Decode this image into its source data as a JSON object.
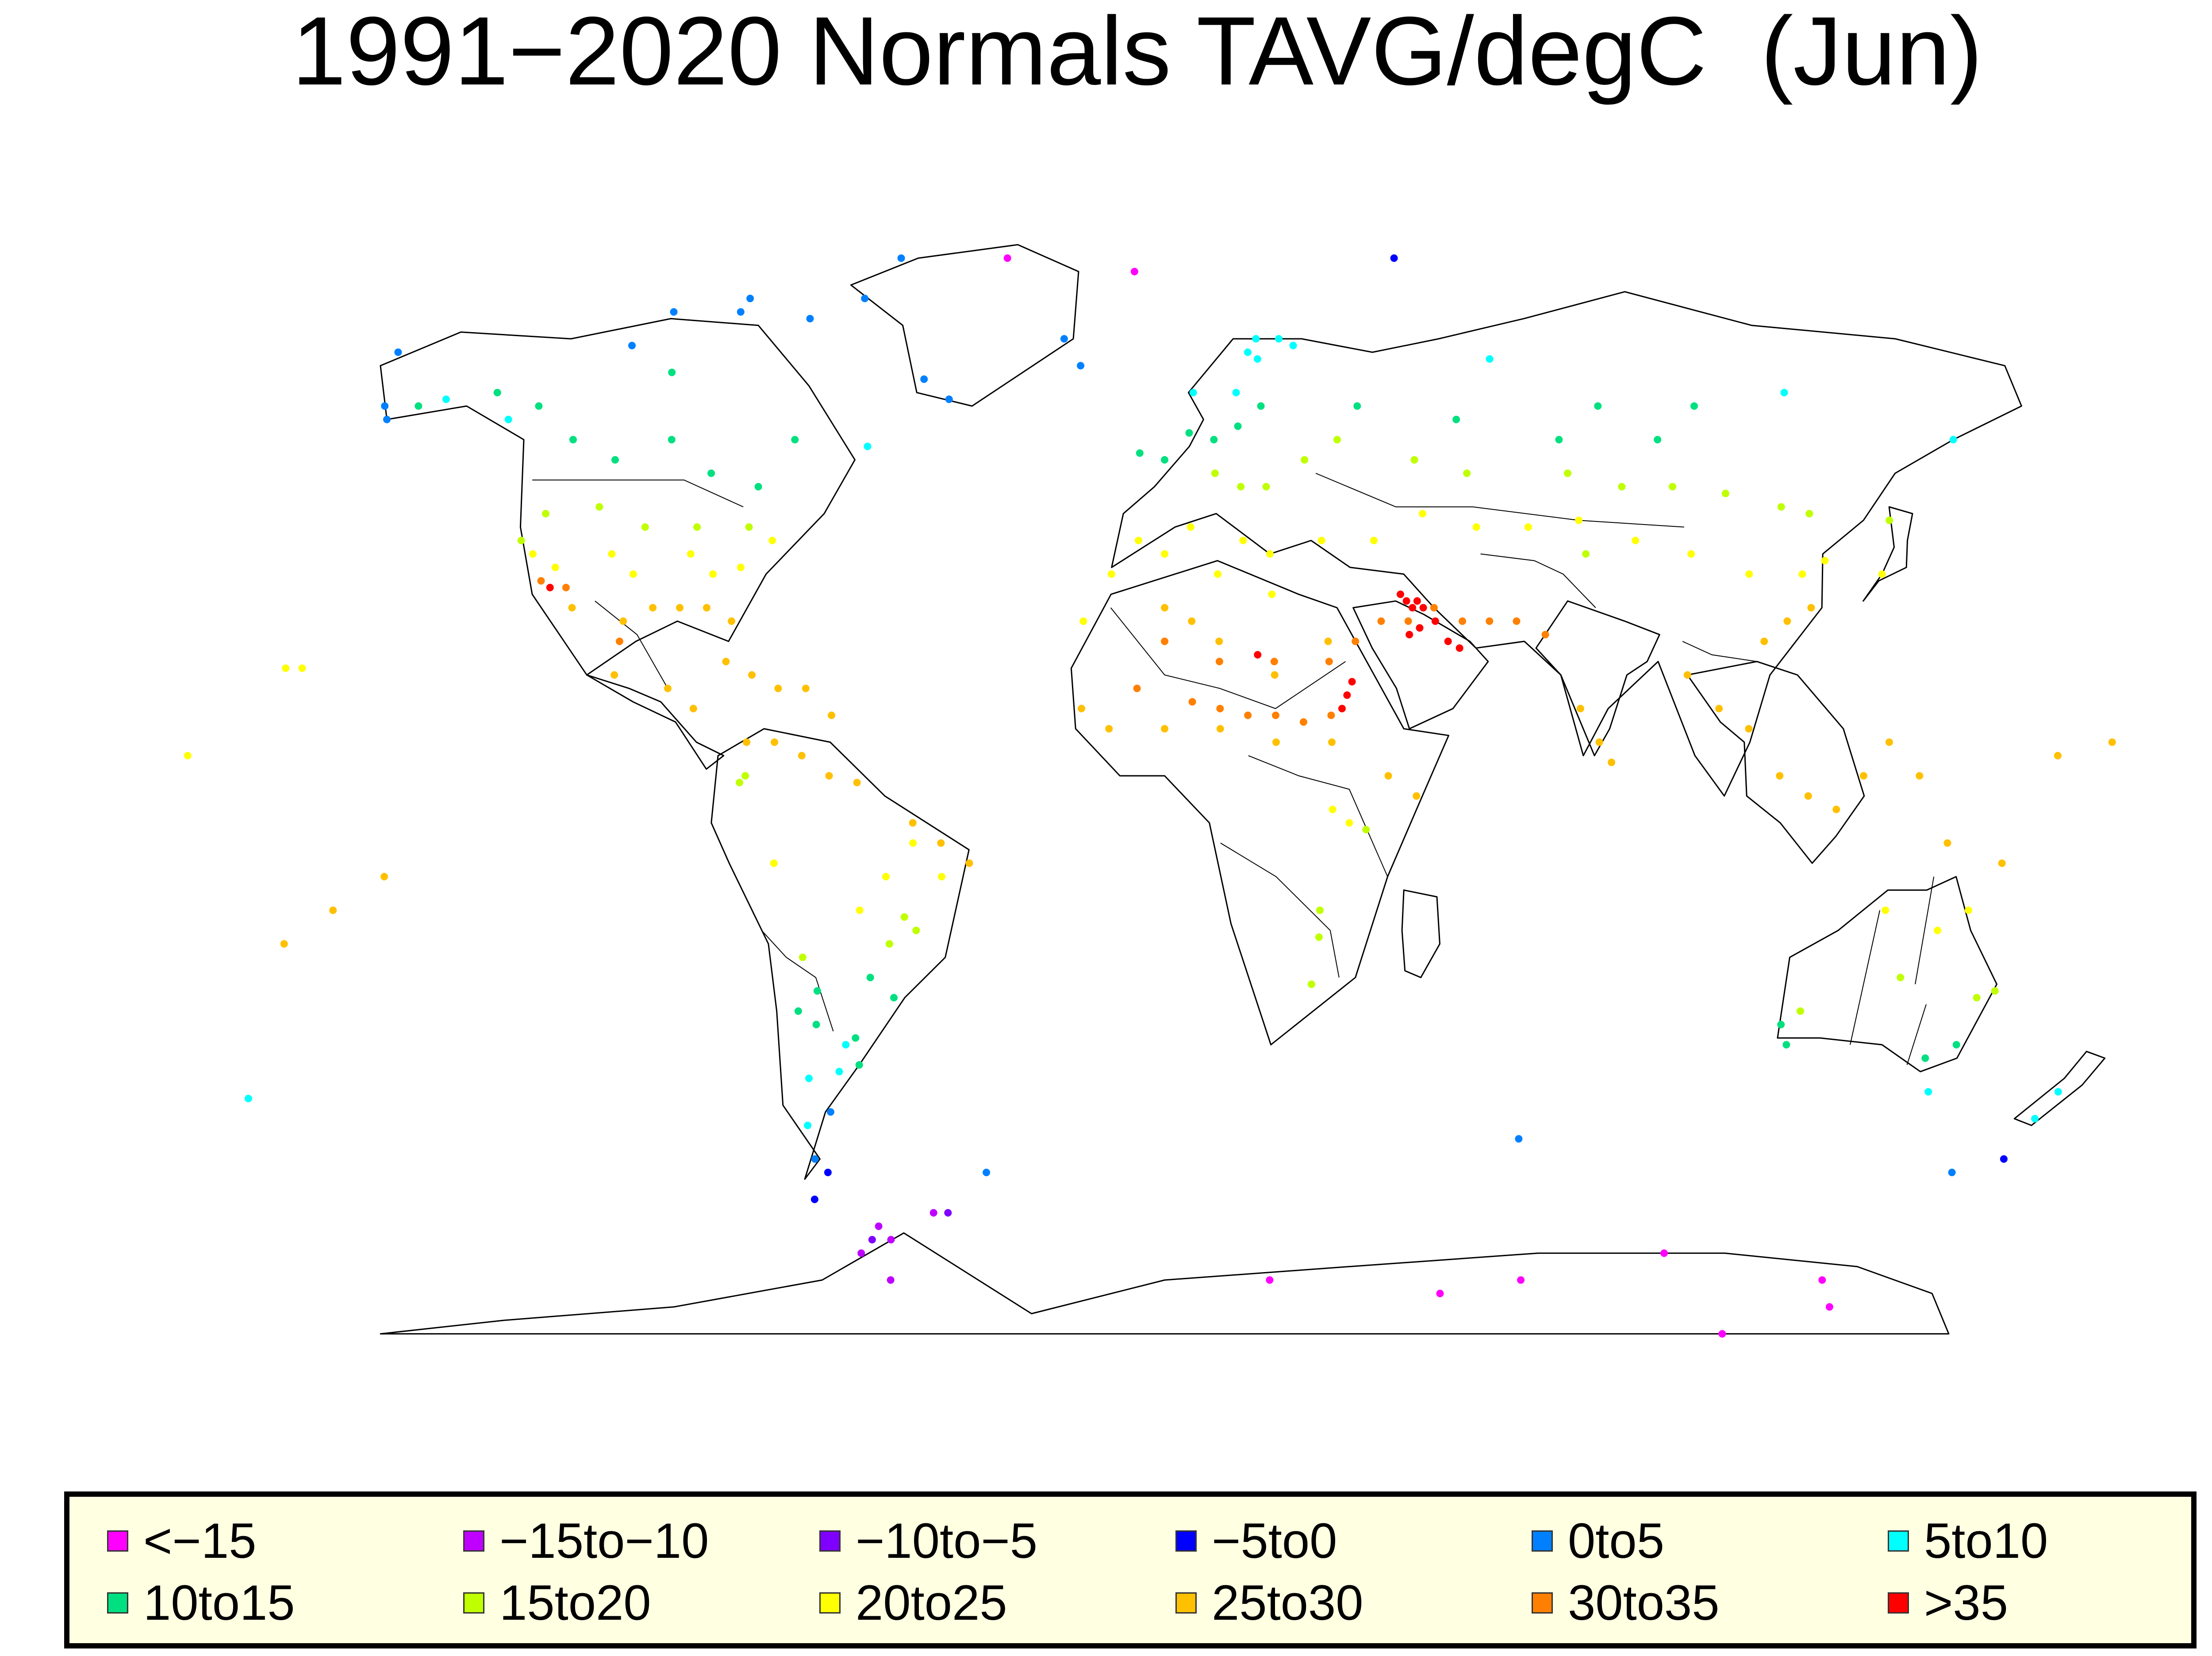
{
  "title": "1991−2020 Normals TAVG/degC  (Jun)",
  "legend": {
    "items": [
      {
        "label": "<−15",
        "color": "#ff00ff"
      },
      {
        "label": "−15to−10",
        "color": "#c000ff"
      },
      {
        "label": "−10to−5",
        "color": "#8000ff"
      },
      {
        "label": "−5to0",
        "color": "#0000ff"
      },
      {
        "label": "0to5",
        "color": "#0080ff"
      },
      {
        "label": "5to10",
        "color": "#00ffff"
      },
      {
        "label": "10to15",
        "color": "#00e080"
      },
      {
        "label": "15to20",
        "color": "#c0ff00"
      },
      {
        "label": "20to25",
        "color": "#ffff00"
      },
      {
        "label": "25to30",
        "color": "#ffc000"
      },
      {
        "label": "30to35",
        "color": "#ff8000"
      },
      {
        "label": ">35",
        "color": "#ff0000"
      }
    ]
  },
  "map": {
    "projection": "Robinson-like world map",
    "boundaries": "coastlines and country borders",
    "station_markers": "colored dots by June average temperature class"
  },
  "chart_data": {
    "type": "scatter",
    "title": "1991−2020 Normals TAVG/degC  (Jun)",
    "categories": [
      "<−15",
      "−15to−10",
      "−10to−5",
      "−5to0",
      "0to5",
      "5to10",
      "10to15",
      "15to20",
      "20to25",
      "25to30",
      "30to35",
      ">35"
    ],
    "colors": [
      "#ff00ff",
      "#c000ff",
      "#8000ff",
      "#0000ff",
      "#0080ff",
      "#00ffff",
      "#00e080",
      "#c0ff00",
      "#ffff00",
      "#ffc000",
      "#ff8000",
      "#ff0000"
    ],
    "series": [
      {
        "name": "<−15",
        "points": [
          [
            -37,
            82
          ],
          [
            -7,
            80
          ],
          [
            23,
            -70
          ],
          [
            61,
            -72
          ],
          [
            78,
            -70
          ],
          [
            107,
            -66
          ],
          [
            144,
            -70
          ],
          [
            149,
            -74
          ],
          [
            128,
            -78
          ]
        ]
      },
      {
        "name": "−15to−10",
        "points": [
          [
            -60,
            -62
          ],
          [
            -58,
            -64
          ],
          [
            -65,
            -66
          ],
          [
            -48,
            -60
          ],
          [
            -60,
            -70
          ]
        ]
      },
      {
        "name": "−10to−5",
        "points": [
          [
            -45,
            -60
          ],
          [
            -62,
            -64
          ]
        ]
      },
      {
        "name": "−5to0",
        "points": [
          [
            54,
            82
          ],
          [
            -72,
            -58
          ],
          [
            -68,
            -54
          ],
          [
            168,
            -52
          ]
        ]
      },
      {
        "name": "0to5",
        "points": [
          [
            -68,
            76
          ],
          [
            -51,
            64
          ],
          [
            -45,
            61
          ],
          [
            -22,
            70
          ],
          [
            -18,
            66
          ],
          [
            -95,
            74
          ],
          [
            -116,
            69
          ],
          [
            -110,
            74
          ],
          [
            -166,
            68
          ],
          [
            -162,
            60
          ],
          [
            -70,
            -52
          ],
          [
            -65,
            -45
          ],
          [
            -36,
            -54
          ],
          [
            70,
            -49
          ],
          [
            159,
            -54
          ],
          [
            -160,
            58
          ],
          [
            -94,
            76
          ],
          [
            -79,
            73
          ],
          [
            -62,
            82
          ]
        ]
      },
      {
        "name": "5to10",
        "points": [
          [
            25,
            70
          ],
          [
            20,
            67
          ],
          [
            15,
            62
          ],
          [
            -150,
            61
          ],
          [
            -135,
            58
          ],
          [
            -68,
            -40
          ],
          [
            -70,
            -47
          ],
          [
            -62,
            -39
          ],
          [
            -60,
            -35
          ],
          [
            147,
            -42
          ],
          [
            172,
            -42
          ],
          [
            170,
            -46
          ],
          [
            -60,
            54
          ],
          [
            70,
            67
          ],
          [
            130,
            62
          ],
          [
            160,
            55
          ],
          [
            -177,
            -43
          ],
          [
            20,
            70
          ],
          [
            18,
            68
          ],
          [
            28,
            69
          ],
          [
            6,
            62
          ]
        ]
      },
      {
        "name": "10to15",
        "points": [
          [
            -100,
            55
          ],
          [
            -90,
            50
          ],
          [
            -80,
            48
          ],
          [
            -110,
            52
          ],
          [
            -120,
            55
          ],
          [
            -130,
            60
          ],
          [
            -105,
            65
          ],
          [
            -75,
            55
          ],
          [
            -140,
            62
          ],
          [
            -155,
            60
          ],
          [
            0,
            52
          ],
          [
            5,
            56
          ],
          [
            -5,
            53
          ],
          [
            20,
            60
          ],
          [
            10,
            55
          ],
          [
            15,
            57
          ],
          [
            -58,
            -34
          ],
          [
            -65,
            -32
          ],
          [
            -58,
            -38
          ],
          [
            144,
            -37
          ],
          [
            149,
            -35
          ],
          [
            115,
            -32
          ],
          [
            117,
            -35
          ],
          [
            100,
            55
          ],
          [
            110,
            60
          ],
          [
            90,
            60
          ],
          [
            80,
            55
          ],
          [
            40,
            60
          ],
          [
            60,
            58
          ],
          [
            -68,
            -30
          ],
          [
            -64,
            -27
          ],
          [
            -50,
            -28
          ],
          [
            -54,
            -25
          ]
        ]
      },
      {
        "name": "15to20",
        "points": [
          [
            10,
            50
          ],
          [
            15,
            48
          ],
          [
            20,
            48
          ],
          [
            -80,
            42
          ],
          [
            -90,
            42
          ],
          [
            -100,
            42
          ],
          [
            -110,
            45
          ],
          [
            -120,
            44
          ],
          [
            -123,
            40
          ],
          [
            28,
            52
          ],
          [
            35,
            55
          ],
          [
            50,
            52
          ],
          [
            60,
            50
          ],
          [
            80,
            50
          ],
          [
            90,
            48
          ],
          [
            100,
            48
          ],
          [
            110,
            47
          ],
          [
            120,
            45
          ],
          [
            125,
            44
          ],
          [
            140,
            43
          ],
          [
            28,
            -15
          ],
          [
            28,
            -19
          ],
          [
            27,
            -26
          ],
          [
            -47,
            -16
          ],
          [
            -45,
            -18
          ],
          [
            -50,
            -20
          ],
          [
            -75,
            5
          ],
          [
            -76,
            4
          ],
          [
            -66,
            -22
          ],
          [
            118,
            -30
          ],
          [
            135,
            -25
          ],
          [
            150,
            -28
          ],
          [
            153,
            -27
          ],
          [
            36,
            -3
          ],
          [
            80,
            38
          ]
        ]
      },
      {
        "name": "20to25",
        "points": [
          [
            -120,
            38
          ],
          [
            -115,
            36
          ],
          [
            -105,
            38
          ],
          [
            -100,
            35
          ],
          [
            -90,
            38
          ],
          [
            -85,
            35
          ],
          [
            -80,
            36
          ],
          [
            -75,
            40
          ],
          [
            -5,
            40
          ],
          [
            0,
            38
          ],
          [
            5,
            42
          ],
          [
            15,
            40
          ],
          [
            20,
            38
          ],
          [
            30,
            40
          ],
          [
            40,
            40
          ],
          [
            50,
            44
          ],
          [
            60,
            42
          ],
          [
            70,
            42
          ],
          [
            80,
            43
          ],
          [
            90,
            40
          ],
          [
            100,
            38
          ],
          [
            110,
            35
          ],
          [
            120,
            35
          ],
          [
            125,
            37
          ],
          [
            135,
            35
          ],
          [
            -40,
            -10
          ],
          [
            -45,
            -5
          ],
          [
            -50,
            -10
          ],
          [
            -55,
            -15
          ],
          [
            -160,
            21
          ],
          [
            -157,
            21
          ],
          [
            -175,
            8
          ],
          [
            130,
            -15
          ],
          [
            140,
            -18
          ],
          [
            145,
            -15
          ],
          [
            30,
            0
          ],
          [
            33,
            -2
          ],
          [
            -15,
            28
          ],
          [
            -10,
            35
          ],
          [
            10,
            35
          ],
          [
            20,
            32
          ],
          [
            -70,
            -8
          ]
        ]
      },
      {
        "name": "25to30",
        "points": [
          [
            -110,
            30
          ],
          [
            -100,
            28
          ],
          [
            -95,
            30
          ],
          [
            -90,
            30
          ],
          [
            -85,
            30
          ],
          [
            -80,
            28
          ],
          [
            -100,
            20
          ],
          [
            -90,
            18
          ],
          [
            -85,
            15
          ],
          [
            -80,
            22
          ],
          [
            -75,
            20
          ],
          [
            -70,
            18
          ],
          [
            -65,
            18
          ],
          [
            -60,
            14
          ],
          [
            -75,
            10
          ],
          [
            -70,
            10
          ],
          [
            -65,
            8
          ],
          [
            -60,
            5
          ],
          [
            -55,
            4
          ],
          [
            -45,
            -2
          ],
          [
            -40,
            -5
          ],
          [
            -35,
            -8
          ],
          [
            0,
            30
          ],
          [
            5,
            28
          ],
          [
            10,
            25
          ],
          [
            20,
            20
          ],
          [
            30,
            25
          ],
          [
            -15,
            15
          ],
          [
            -10,
            12
          ],
          [
            0,
            12
          ],
          [
            10,
            12
          ],
          [
            20,
            10
          ],
          [
            30,
            10
          ],
          [
            40,
            5
          ],
          [
            45,
            2
          ],
          [
            75,
            15
          ],
          [
            78,
            10
          ],
          [
            80,
            7
          ],
          [
            95,
            20
          ],
          [
            100,
            15
          ],
          [
            105,
            12
          ],
          [
            110,
            5
          ],
          [
            115,
            2
          ],
          [
            120,
            0
          ],
          [
            125,
            5
          ],
          [
            130,
            10
          ],
          [
            135,
            5
          ],
          [
            140,
            -5
          ],
          [
            150,
            -8
          ],
          [
            160,
            8
          ],
          [
            170,
            10
          ],
          [
            -150,
            -15
          ],
          [
            -140,
            -10
          ],
          [
            -160,
            -20
          ],
          [
            110,
            25
          ],
          [
            115,
            28
          ],
          [
            120,
            30
          ]
        ]
      },
      {
        "name": "30to35",
        "points": [
          [
            -112,
            33
          ],
          [
            -100,
            25
          ],
          [
            0,
            25
          ],
          [
            10,
            22
          ],
          [
            20,
            22
          ],
          [
            30,
            22
          ],
          [
            35,
            25
          ],
          [
            40,
            28
          ],
          [
            45,
            28
          ],
          [
            50,
            30
          ],
          [
            55,
            28
          ],
          [
            60,
            28
          ],
          [
            65,
            28
          ],
          [
            70,
            26
          ],
          [
            -5,
            18
          ],
          [
            5,
            16
          ],
          [
            10,
            15
          ],
          [
            15,
            14
          ],
          [
            20,
            14
          ],
          [
            25,
            13
          ],
          [
            30,
            14
          ],
          [
            -117,
            34
          ]
        ]
      },
      {
        "name": ">35",
        "points": [
          [
            44,
            32
          ],
          [
            45,
            31
          ],
          [
            46,
            30
          ],
          [
            47,
            31
          ],
          [
            48,
            30
          ],
          [
            50,
            28
          ],
          [
            47,
            27
          ],
          [
            45,
            26
          ],
          [
            34,
            19
          ],
          [
            33,
            17
          ],
          [
            32,
            15
          ],
          [
            52,
            25
          ],
          [
            54,
            24
          ],
          [
            -115,
            33
          ],
          [
            17,
            23
          ]
        ]
      }
    ]
  }
}
